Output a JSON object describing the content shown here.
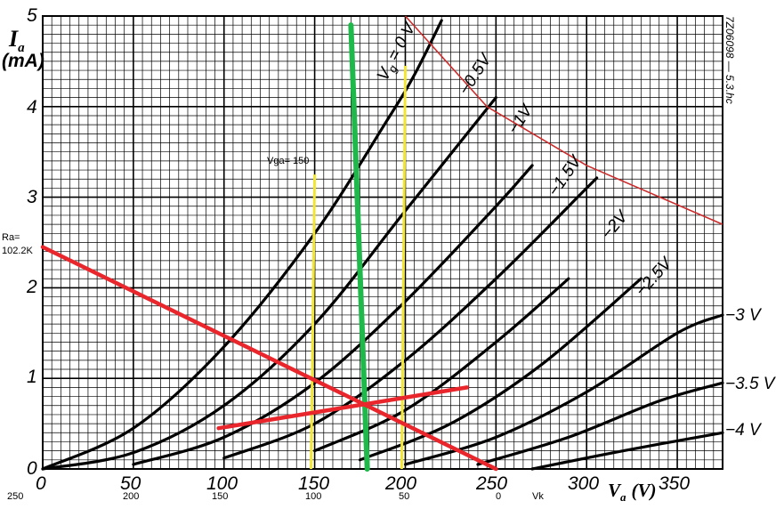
{
  "chart_data": {
    "type": "line",
    "xlabel_main": "V",
    "xlabel_sub": "a",
    "xlabel_unit": "(V)",
    "ylabel_main": "I",
    "ylabel_sub": "a",
    "ylabel_unit": "(mA)",
    "xlim": [
      0,
      375
    ],
    "ylim": [
      0,
      5
    ],
    "grid": true,
    "x_ticks": [
      "0",
      "50",
      "100",
      "150",
      "200",
      "250",
      "300",
      "350"
    ],
    "y_ticks": [
      "0",
      "1",
      "2",
      "3",
      "4",
      "5"
    ],
    "vk_ticks": [
      "250",
      "200",
      "150",
      "100",
      "50",
      "0"
    ],
    "vk_label": "Vk",
    "figure_code": "7Z06098 — 5.3.hc",
    "annotation_vga": "Vga= 150",
    "annotation_ra": "Ra=\n102.2K",
    "series": [
      {
        "name": "Vg = 0 V",
        "label_parts": [
          "V",
          "g",
          " = 0 V"
        ],
        "points": [
          [
            0,
            0
          ],
          [
            50,
            0.45
          ],
          [
            100,
            1.35
          ],
          [
            150,
            2.6
          ],
          [
            190,
            3.85
          ],
          [
            205,
            4.35
          ],
          [
            220,
            4.95
          ]
        ]
      },
      {
        "name": "-0.5V",
        "label": "−0.5V",
        "points": [
          [
            0,
            0
          ],
          [
            50,
            0.18
          ],
          [
            100,
            0.7
          ],
          [
            150,
            1.6
          ],
          [
            200,
            2.85
          ],
          [
            250,
            4.1
          ]
        ]
      },
      {
        "name": "-1V",
        "label": "−1V",
        "points": [
          [
            50,
            0.05
          ],
          [
            100,
            0.35
          ],
          [
            150,
            0.95
          ],
          [
            200,
            1.85
          ],
          [
            250,
            2.9
          ],
          [
            270,
            3.35
          ]
        ]
      },
      {
        "name": "-1.5V",
        "label": "−1.5V",
        "points": [
          [
            100,
            0.12
          ],
          [
            150,
            0.5
          ],
          [
            200,
            1.2
          ],
          [
            250,
            2.1
          ],
          [
            300,
            3.1
          ],
          [
            305,
            3.2
          ]
        ]
      },
      {
        "name": "-2V",
        "label": "−2V",
        "points": [
          [
            150,
            0.2
          ],
          [
            200,
            0.65
          ],
          [
            250,
            1.4
          ],
          [
            290,
            2.1
          ]
        ]
      },
      {
        "name": "-2.5V",
        "label": "−2.5V",
        "points": [
          [
            175,
            0.1
          ],
          [
            225,
            0.5
          ],
          [
            275,
            1.15
          ],
          [
            330,
            2.1
          ]
        ]
      },
      {
        "name": "-3V",
        "label": "−3 V",
        "points": [
          [
            200,
            0.05
          ],
          [
            250,
            0.35
          ],
          [
            300,
            0.85
          ],
          [
            350,
            1.5
          ],
          [
            375,
            1.7
          ]
        ]
      },
      {
        "name": "-3.5V",
        "label": "−3.5 V",
        "points": [
          [
            240,
            0.05
          ],
          [
            290,
            0.35
          ],
          [
            340,
            0.75
          ],
          [
            375,
            0.95
          ]
        ]
      },
      {
        "name": "-4V",
        "label": "−4 V",
        "points": [
          [
            270,
            0
          ],
          [
            320,
            0.2
          ],
          [
            375,
            0.4
          ]
        ]
      }
    ],
    "max_dissipation_curve": [
      [
        200,
        5
      ],
      [
        245,
        4.0
      ],
      [
        300,
        3.35
      ],
      [
        375,
        2.7
      ]
    ],
    "load_line": [
      [
        0,
        2.45
      ],
      [
        250,
        0
      ]
    ],
    "bias_line": [
      [
        97,
        0.45
      ],
      [
        234,
        0.9
      ]
    ],
    "green_line": [
      [
        170,
        4.9
      ],
      [
        179,
        0
      ]
    ],
    "yellow_lines": [
      [
        [
          150,
          3.25
        ],
        [
          148,
          0
        ]
      ],
      [
        [
          200,
          4.45
        ],
        [
          198,
          0
        ]
      ]
    ],
    "colors": {
      "grid": "#000000",
      "curve": "#000000",
      "load_line": "#e8262c",
      "max_curve": "#cc2b2b",
      "green": "#1fb84a",
      "yellow": "#f2e632"
    }
  }
}
